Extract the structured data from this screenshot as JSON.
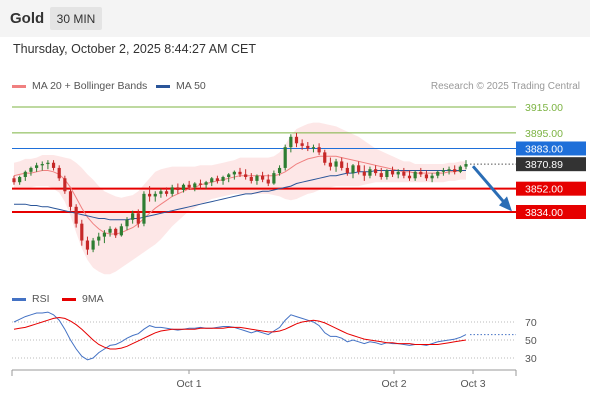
{
  "header": {
    "title": "Gold",
    "interval": "30 MIN"
  },
  "timestamp": "Thursday, October 2, 2025 8:44:27 AM CET",
  "legend": [
    {
      "label": "MA 20 + Bollinger Bands",
      "color": "#f08080"
    },
    {
      "label": "MA 50",
      "color": "#2a5599"
    }
  ],
  "credit": "Research © 2025 Trading Central",
  "rsi_legend": [
    {
      "label": "RSI",
      "color": "#4472c4"
    },
    {
      "label": "9MA",
      "color": "#e60000"
    }
  ],
  "colors": {
    "bullish": "#2e7d32",
    "bearish": "#c62828",
    "resistance": "#7cb342",
    "support": "#e60000",
    "pivot": "#1e6fd9",
    "arrow": "#2a6db5"
  },
  "chart_data": [
    {
      "type": "line",
      "subtype": "candlestick",
      "title": "Gold",
      "x_labels": [
        "Oct 1",
        "Oct 2",
        "Oct 3"
      ],
      "ylim": [
        3790,
        3935
      ],
      "current_price": 3870.89,
      "levels": [
        {
          "value": 3915.0,
          "label": "3915.00",
          "kind": "resistance"
        },
        {
          "value": 3895.0,
          "label": "3895.00",
          "kind": "resistance"
        },
        {
          "value": 3883.0,
          "label": "3883.00",
          "kind": "pivot"
        },
        {
          "value": 3870.89,
          "label": "3870.89",
          "kind": "current"
        },
        {
          "value": 3852.0,
          "label": "3852.00",
          "kind": "support"
        },
        {
          "value": 3834.0,
          "label": "3834.00",
          "kind": "support"
        }
      ],
      "ohlc": [
        [
          3860,
          3862,
          3855,
          3857
        ],
        [
          3857,
          3862,
          3855,
          3861
        ],
        [
          3861,
          3866,
          3858,
          3865
        ],
        [
          3865,
          3869,
          3862,
          3868
        ],
        [
          3868,
          3872,
          3865,
          3870
        ],
        [
          3870,
          3873,
          3866,
          3871
        ],
        [
          3871,
          3874,
          3867,
          3872
        ],
        [
          3872,
          3874,
          3866,
          3868
        ],
        [
          3868,
          3870,
          3858,
          3860
        ],
        [
          3860,
          3862,
          3848,
          3850
        ],
        [
          3850,
          3852,
          3835,
          3838
        ],
        [
          3838,
          3840,
          3822,
          3825
        ],
        [
          3825,
          3828,
          3808,
          3812
        ],
        [
          3812,
          3815,
          3801,
          3805
        ],
        [
          3805,
          3814,
          3803,
          3812
        ],
        [
          3812,
          3818,
          3808,
          3815
        ],
        [
          3815,
          3820,
          3810,
          3818
        ],
        [
          3818,
          3823,
          3815,
          3821
        ],
        [
          3821,
          3822,
          3814,
          3816
        ],
        [
          3816,
          3825,
          3815,
          3823
        ],
        [
          3823,
          3830,
          3820,
          3828
        ],
        [
          3828,
          3835,
          3825,
          3833
        ],
        [
          3833,
          3836,
          3822,
          3825
        ],
        [
          3825,
          3850,
          3823,
          3848
        ],
        [
          3848,
          3854,
          3842,
          3846
        ],
        [
          3846,
          3850,
          3842,
          3848
        ],
        [
          3848,
          3852,
          3845,
          3850
        ],
        [
          3850,
          3853,
          3846,
          3848
        ],
        [
          3848,
          3855,
          3846,
          3853
        ],
        [
          3853,
          3856,
          3848,
          3851
        ],
        [
          3851,
          3856,
          3849,
          3855
        ],
        [
          3855,
          3858,
          3851,
          3853
        ],
        [
          3853,
          3857,
          3850,
          3856
        ],
        [
          3856,
          3859,
          3852,
          3855
        ],
        [
          3855,
          3858,
          3852,
          3857
        ],
        [
          3857,
          3861,
          3854,
          3860
        ],
        [
          3860,
          3862,
          3856,
          3858
        ],
        [
          3858,
          3862,
          3855,
          3861
        ],
        [
          3861,
          3864,
          3857,
          3863
        ],
        [
          3863,
          3866,
          3859,
          3865
        ],
        [
          3865,
          3868,
          3861,
          3863
        ],
        [
          3863,
          3867,
          3859,
          3861
        ],
        [
          3861,
          3864,
          3856,
          3858
        ],
        [
          3858,
          3863,
          3855,
          3862
        ],
        [
          3862,
          3865,
          3857,
          3859
        ],
        [
          3859,
          3863,
          3854,
          3856
        ],
        [
          3856,
          3866,
          3855,
          3864
        ],
        [
          3864,
          3870,
          3862,
          3868
        ],
        [
          3868,
          3886,
          3866,
          3884
        ],
        [
          3884,
          3894,
          3880,
          3892
        ],
        [
          3892,
          3895,
          3884,
          3887
        ],
        [
          3887,
          3890,
          3882,
          3885
        ],
        [
          3885,
          3888,
          3881,
          3883
        ],
        [
          3883,
          3886,
          3880,
          3884
        ],
        [
          3884,
          3887,
          3878,
          3880
        ],
        [
          3880,
          3882,
          3870,
          3872
        ],
        [
          3872,
          3876,
          3866,
          3869
        ],
        [
          3869,
          3875,
          3865,
          3873
        ],
        [
          3873,
          3876,
          3866,
          3868
        ],
        [
          3868,
          3872,
          3862,
          3864
        ],
        [
          3864,
          3871,
          3860,
          3870
        ],
        [
          3870,
          3873,
          3863,
          3865
        ],
        [
          3865,
          3870,
          3858,
          3862
        ],
        [
          3862,
          3869,
          3860,
          3867
        ],
        [
          3867,
          3870,
          3862,
          3864
        ],
        [
          3864,
          3868,
          3859,
          3861
        ],
        [
          3861,
          3867,
          3859,
          3866
        ],
        [
          3866,
          3869,
          3861,
          3863
        ],
        [
          3863,
          3867,
          3860,
          3865
        ],
        [
          3865,
          3868,
          3860,
          3862
        ],
        [
          3862,
          3866,
          3858,
          3860
        ],
        [
          3860,
          3866,
          3858,
          3865
        ],
        [
          3865,
          3868,
          3861,
          3863
        ],
        [
          3863,
          3866,
          3858,
          3860
        ],
        [
          3860,
          3864,
          3857,
          3862
        ],
        [
          3862,
          3866,
          3860,
          3865
        ],
        [
          3865,
          3868,
          3862,
          3866
        ],
        [
          3866,
          3869,
          3863,
          3867
        ],
        [
          3867,
          3870,
          3863,
          3865
        ],
        [
          3865,
          3870,
          3864,
          3869
        ],
        [
          3869,
          3874,
          3867,
          3871
        ]
      ],
      "ma20": [
        3862,
        3863,
        3864,
        3864,
        3865,
        3866,
        3866,
        3865,
        3863,
        3859,
        3853,
        3845,
        3837,
        3830,
        3825,
        3821,
        3818,
        3817,
        3817,
        3818,
        3820,
        3822,
        3825,
        3829,
        3833,
        3837,
        3840,
        3843,
        3846,
        3848,
        3850,
        3852,
        3853,
        3855,
        3856,
        3857,
        3858,
        3859,
        3860,
        3861,
        3862,
        3862,
        3862,
        3862,
        3862,
        3862,
        3862,
        3863,
        3865,
        3868,
        3871,
        3873,
        3875,
        3876,
        3877,
        3877,
        3877,
        3877,
        3876,
        3875,
        3874,
        3873,
        3872,
        3871,
        3870,
        3869,
        3868,
        3867,
        3866,
        3865,
        3865,
        3864,
        3864,
        3864,
        3864,
        3864,
        3864,
        3865,
        3865,
        3866,
        3866
      ],
      "ma50": [
        3840,
        3840,
        3840,
        3839,
        3839,
        3838,
        3838,
        3837,
        3836,
        3835,
        3834,
        3833,
        3832,
        3831,
        3830,
        3829,
        3829,
        3828,
        3828,
        3828,
        3828,
        3829,
        3829,
        3830,
        3831,
        3832,
        3833,
        3834,
        3835,
        3836,
        3837,
        3838,
        3839,
        3840,
        3841,
        3842,
        3843,
        3844,
        3845,
        3846,
        3847,
        3848,
        3848,
        3849,
        3850,
        3850,
        3851,
        3852,
        3853,
        3854,
        3856,
        3857,
        3858,
        3859,
        3860,
        3861,
        3862,
        3862,
        3863,
        3864,
        3864,
        3865,
        3865,
        3865,
        3866,
        3866,
        3866,
        3866,
        3866,
        3866,
        3866,
        3866,
        3866,
        3866,
        3866,
        3866,
        3866,
        3866,
        3866,
        3866,
        3866
      ],
      "bb_width": [
        10,
        10,
        11,
        11,
        11,
        12,
        12,
        13,
        14,
        17,
        22,
        27,
        31,
        33,
        34,
        33,
        32,
        31,
        29,
        27,
        26,
        25,
        25,
        26,
        27,
        28,
        27,
        25,
        23,
        21,
        19,
        17,
        16,
        15,
        14,
        13,
        13,
        13,
        13,
        13,
        14,
        14,
        14,
        14,
        14,
        14,
        15,
        17,
        21,
        25,
        27,
        27,
        27,
        27,
        26,
        25,
        24,
        23,
        22,
        21,
        20,
        19,
        17,
        15,
        13,
        12,
        11,
        10,
        9,
        8,
        8,
        7,
        7,
        7,
        7,
        7,
        7,
        7,
        7,
        7,
        7
      ],
      "forecast_arrow": {
        "from": 3870.89,
        "to": 3836
      }
    },
    {
      "type": "line",
      "title": "RSI",
      "yticks": [
        30,
        50,
        70
      ],
      "ylim": [
        15,
        90
      ],
      "series": [
        {
          "name": "RSI",
          "values": [
            70,
            73,
            76,
            78,
            80,
            80,
            81,
            78,
            72,
            62,
            50,
            40,
            32,
            28,
            30,
            36,
            40,
            44,
            45,
            48,
            52,
            55,
            57,
            62,
            66,
            64,
            64,
            63,
            62,
            61,
            62,
            63,
            63,
            64,
            63,
            63,
            64,
            65,
            65,
            64,
            62,
            60,
            58,
            60,
            58,
            56,
            60,
            64,
            72,
            78,
            76,
            74,
            72,
            70,
            66,
            58,
            54,
            54,
            52,
            48,
            50,
            48,
            46,
            48,
            47,
            45,
            47,
            46,
            46,
            45,
            44,
            45,
            45,
            44,
            46,
            48,
            49,
            50,
            51,
            53,
            56
          ]
        },
        {
          "name": "9MA",
          "values": [
            62,
            63,
            64,
            66,
            68,
            70,
            72,
            74,
            75,
            74,
            71,
            67,
            62,
            56,
            50,
            45,
            42,
            40,
            40,
            41,
            43,
            46,
            49,
            52,
            55,
            58,
            60,
            61,
            62,
            62,
            62,
            62,
            62,
            63,
            63,
            63,
            63,
            63,
            64,
            64,
            64,
            63,
            62,
            61,
            60,
            59,
            59,
            60,
            62,
            65,
            68,
            70,
            71,
            72,
            71,
            69,
            66,
            63,
            60,
            57,
            55,
            53,
            51,
            50,
            49,
            48,
            47,
            47,
            46,
            46,
            46,
            45,
            45,
            45,
            45,
            45,
            46,
            47,
            48,
            49,
            50
          ]
        }
      ]
    }
  ]
}
